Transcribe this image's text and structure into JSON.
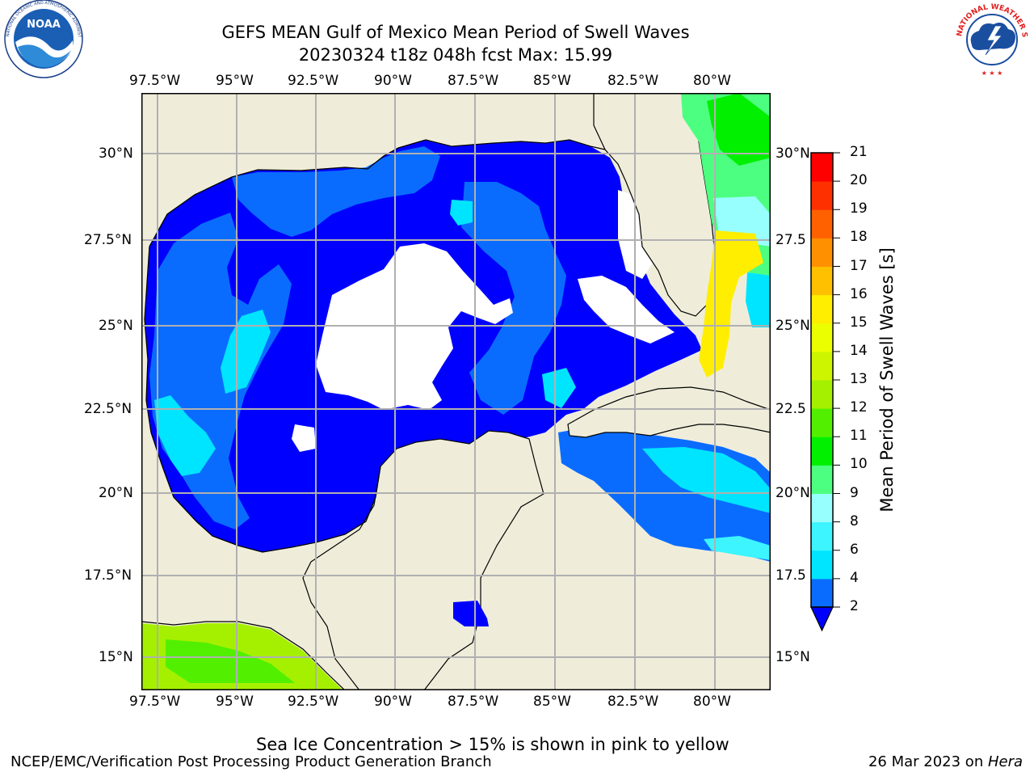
{
  "header": {
    "title_line1": "GEFS MEAN Gulf of Mexico Mean Period of Swell Waves",
    "title_line2": "20230324 t18z 048h fcst   Max: 15.99"
  },
  "logos": {
    "noaa_text": "NOAA",
    "noaa_ring": "NATIONAL OCEANIC AND ATMOSPHERIC ADMINISTRATION · U.S. DEPARTMENT OF COMMERCE",
    "nws_ring": "NATIONAL WEATHER SERVICE"
  },
  "map": {
    "lon_labels": [
      "97.5°W",
      "95°W",
      "92.5°W",
      "90°W",
      "87.5°W",
      "85°W",
      "82.5°W",
      "80°W"
    ],
    "lat_labels_left": [
      "30°N",
      "27.5°N",
      "25°N",
      "22.5°N",
      "20°N",
      "17.5°N",
      "15°N"
    ],
    "lat_labels_right": [
      "30°N",
      "27.5",
      "25°N",
      "22.5",
      "20°N",
      "17.5",
      "15°N"
    ],
    "colors": {
      "land": "#efedda",
      "ocean_gap": "#ffffff",
      "gridline": "#b0b0b0",
      "coast": "#000000"
    }
  },
  "colorbar": {
    "label": "Mean Period of Swell Waves [s]",
    "ticks": [
      "2",
      "4",
      "6",
      "8",
      "9",
      "10",
      "11",
      "12",
      "13",
      "14",
      "15",
      "16",
      "17",
      "18",
      "19",
      "20",
      "21"
    ],
    "colors": [
      "#0a6cff",
      "#00e5ff",
      "#3cf5ff",
      "#98ffff",
      "#4dff80",
      "#00f000",
      "#52f000",
      "#a5f000",
      "#cdf500",
      "#ebff00",
      "#ffee00",
      "#ffc000",
      "#ff9000",
      "#ff6000",
      "#ff3000",
      "#ff0000"
    ],
    "extend_color": "#0000ff"
  },
  "footer": {
    "ice_note": "Sea Ice Concentration > 15% is shown in pink to yellow",
    "branch": "NCEP/EMC/Verification Post Processing Product Generation Branch",
    "date": "26 Mar 2023 on ",
    "machine": "Hera"
  }
}
